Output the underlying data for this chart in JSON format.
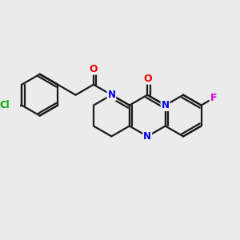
{
  "bg_color": "#ebebeb",
  "bond_color": "#1a1a1a",
  "bond_width": 1.6,
  "atom_colors": {
    "N": "#0000ee",
    "O": "#ee0000",
    "Cl": "#00aa00",
    "F": "#dd00dd",
    "C": "#1a1a1a"
  },
  "figsize": [
    3.0,
    3.0
  ],
  "dpi": 100
}
